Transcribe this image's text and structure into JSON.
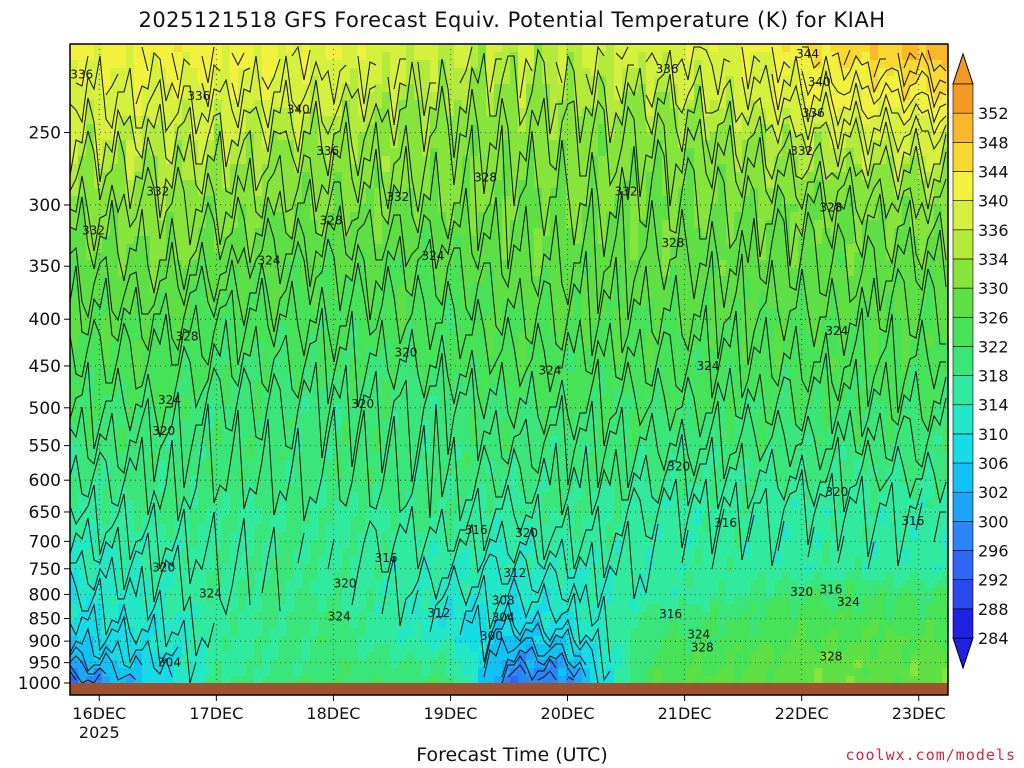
{
  "page": {
    "title": "2025121518 GFS Forecast Equiv. Potential Temperature (K) for KIAH",
    "credit": "coolwx.com/models"
  },
  "chart_data": {
    "type": "heatmap",
    "title": "2025121518 GFS Forecast Equiv. Potential Temperature (K) for KIAH",
    "xlabel": "Forecast Time (UTC)",
    "ylabel": "",
    "y_scale": "log-pressure",
    "y_inverted": true,
    "ylim": [
      1000,
      200
    ],
    "y_ticks": [
      250,
      300,
      350,
      400,
      450,
      500,
      550,
      600,
      650,
      700,
      750,
      800,
      850,
      900,
      950,
      1000
    ],
    "x_ticks": [
      {
        "label": "16DEC",
        "sublabel": "2025"
      },
      {
        "label": "17DEC",
        "sublabel": ""
      },
      {
        "label": "18DEC",
        "sublabel": ""
      },
      {
        "label": "19DEC",
        "sublabel": ""
      },
      {
        "label": "20DEC",
        "sublabel": ""
      },
      {
        "label": "21DEC",
        "sublabel": ""
      },
      {
        "label": "22DEC",
        "sublabel": ""
      },
      {
        "label": "23DEC",
        "sublabel": ""
      }
    ],
    "xlim_days": [
      15.75,
      23.25
    ],
    "grid": true,
    "colorbar": {
      "levels": [
        284,
        288,
        292,
        296,
        300,
        302,
        306,
        310,
        314,
        318,
        322,
        326,
        330,
        334,
        336,
        340,
        344,
        348,
        352
      ],
      "colors": [
        "#2020e0",
        "#2a48ee",
        "#2f66f5",
        "#2a86f8",
        "#1ea4f8",
        "#12c2f5",
        "#16dce8",
        "#22e8c8",
        "#30eaa0",
        "#3ae67a",
        "#46e258",
        "#5ee044",
        "#86e43a",
        "#b4ea3c",
        "#d6f03e",
        "#f2f23e",
        "#fad832",
        "#f8b82a",
        "#f49a24"
      ],
      "extend": "both"
    },
    "field_profile": {
      "pressure": [
        1000,
        950,
        900,
        850,
        800,
        750,
        700,
        650,
        600,
        550,
        500,
        450,
        400,
        350,
        300,
        250,
        200
      ],
      "days": [
        15.75,
        16.5,
        17.0,
        18.0,
        19.0,
        19.5,
        20.0,
        20.75,
        21.5,
        22.0,
        23.25
      ],
      "theta_e": [
        [
          296,
          306,
          318,
          322,
          320,
          296,
          298,
          326,
          328,
          328,
          328
        ],
        [
          302,
          308,
          316,
          320,
          318,
          300,
          302,
          324,
          326,
          328,
          328
        ],
        [
          306,
          310,
          316,
          320,
          312,
          304,
          306,
          322,
          324,
          326,
          326
        ],
        [
          308,
          312,
          316,
          320,
          310,
          308,
          310,
          320,
          322,
          324,
          324
        ],
        [
          310,
          314,
          318,
          318,
          312,
          310,
          312,
          316,
          318,
          322,
          322
        ],
        [
          312,
          314,
          318,
          318,
          314,
          312,
          314,
          316,
          316,
          316,
          316
        ],
        [
          314,
          316,
          318,
          318,
          316,
          314,
          316,
          316,
          316,
          316,
          316
        ],
        [
          316,
          318,
          318,
          318,
          318,
          316,
          318,
          316,
          316,
          316,
          316
        ],
        [
          318,
          320,
          320,
          320,
          320,
          318,
          320,
          318,
          318,
          318,
          318
        ],
        [
          320,
          320,
          320,
          320,
          320,
          320,
          320,
          320,
          320,
          320,
          320
        ],
        [
          322,
          322,
          320,
          320,
          320,
          322,
          322,
          322,
          322,
          322,
          322
        ],
        [
          324,
          324,
          322,
          322,
          322,
          324,
          324,
          324,
          324,
          324,
          324
        ],
        [
          326,
          326,
          324,
          324,
          324,
          326,
          326,
          326,
          326,
          326,
          326
        ],
        [
          328,
          330,
          328,
          326,
          326,
          328,
          328,
          328,
          328,
          328,
          328
        ],
        [
          332,
          332,
          332,
          330,
          330,
          330,
          330,
          330,
          330,
          330,
          332
        ],
        [
          336,
          336,
          336,
          334,
          332,
          332,
          332,
          332,
          334,
          336,
          338
        ],
        [
          340,
          342,
          342,
          340,
          336,
          336,
          336,
          338,
          340,
          344,
          350
        ]
      ]
    },
    "contour_labels": [
      {
        "text": "336",
        "day": 15.85,
        "p": 216
      },
      {
        "text": "336",
        "day": 16.85,
        "p": 228
      },
      {
        "text": "340",
        "day": 17.7,
        "p": 236
      },
      {
        "text": "336",
        "day": 17.95,
        "p": 262
      },
      {
        "text": "332",
        "day": 16.5,
        "p": 290
      },
      {
        "text": "332",
        "day": 15.95,
        "p": 320
      },
      {
        "text": "328",
        "day": 17.98,
        "p": 312
      },
      {
        "text": "332",
        "day": 18.55,
        "p": 294
      },
      {
        "text": "328",
        "day": 19.3,
        "p": 280
      },
      {
        "text": "324",
        "day": 17.45,
        "p": 345
      },
      {
        "text": "324",
        "day": 18.85,
        "p": 341
      },
      {
        "text": "336",
        "day": 20.85,
        "p": 213
      },
      {
        "text": "344",
        "day": 22.05,
        "p": 205
      },
      {
        "text": "340",
        "day": 22.15,
        "p": 220
      },
      {
        "text": "336",
        "day": 22.1,
        "p": 238
      },
      {
        "text": "332",
        "day": 22.0,
        "p": 262
      },
      {
        "text": "332",
        "day": 20.5,
        "p": 290
      },
      {
        "text": "328",
        "day": 22.25,
        "p": 302
      },
      {
        "text": "328",
        "day": 20.9,
        "p": 330
      },
      {
        "text": "328",
        "day": 16.75,
        "p": 418
      },
      {
        "text": "320",
        "day": 18.62,
        "p": 435
      },
      {
        "text": "324",
        "day": 19.85,
        "p": 455
      },
      {
        "text": "324",
        "day": 21.2,
        "p": 450
      },
      {
        "text": "324",
        "day": 22.3,
        "p": 412
      },
      {
        "text": "324",
        "day": 16.6,
        "p": 490
      },
      {
        "text": "320",
        "day": 18.25,
        "p": 495
      },
      {
        "text": "320",
        "day": 16.55,
        "p": 530
      },
      {
        "text": "320",
        "day": 20.95,
        "p": 580
      },
      {
        "text": "320",
        "day": 22.3,
        "p": 618
      },
      {
        "text": "316",
        "day": 21.35,
        "p": 668
      },
      {
        "text": "316",
        "day": 22.95,
        "p": 665
      },
      {
        "text": "316",
        "day": 19.22,
        "p": 680
      },
      {
        "text": "320",
        "day": 19.65,
        "p": 685
      },
      {
        "text": "316",
        "day": 18.45,
        "p": 730
      },
      {
        "text": "320",
        "day": 16.55,
        "p": 748
      },
      {
        "text": "320",
        "day": 18.1,
        "p": 778
      },
      {
        "text": "324",
        "day": 16.95,
        "p": 798
      },
      {
        "text": "312",
        "day": 19.55,
        "p": 758
      },
      {
        "text": "308",
        "day": 19.45,
        "p": 812
      },
      {
        "text": "304",
        "day": 19.45,
        "p": 848
      },
      {
        "text": "312",
        "day": 18.9,
        "p": 838
      },
      {
        "text": "324",
        "day": 18.05,
        "p": 846
      },
      {
        "text": "300",
        "day": 19.35,
        "p": 888
      },
      {
        "text": "304",
        "day": 16.6,
        "p": 950
      },
      {
        "text": "316",
        "day": 20.88,
        "p": 840
      },
      {
        "text": "324",
        "day": 21.12,
        "p": 885
      },
      {
        "text": "328",
        "day": 21.15,
        "p": 915
      },
      {
        "text": "328",
        "day": 22.25,
        "p": 935
      },
      {
        "text": "320",
        "day": 22.0,
        "p": 795
      },
      {
        "text": "316",
        "day": 22.25,
        "p": 790
      },
      {
        "text": "324",
        "day": 22.4,
        "p": 815
      }
    ],
    "ground_color": "#a0522d"
  }
}
